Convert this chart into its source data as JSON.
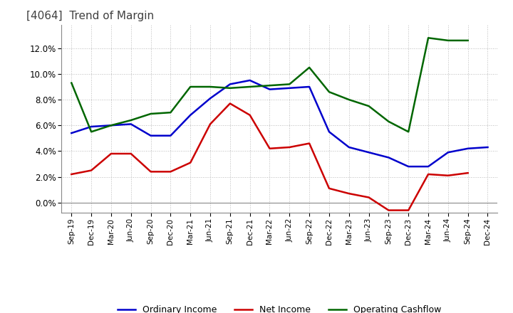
{
  "title": "[4064]  Trend of Margin",
  "x_labels": [
    "Sep-19",
    "Dec-19",
    "Mar-20",
    "Jun-20",
    "Sep-20",
    "Dec-20",
    "Mar-21",
    "Jun-21",
    "Sep-21",
    "Dec-21",
    "Mar-22",
    "Jun-22",
    "Sep-22",
    "Dec-22",
    "Mar-23",
    "Jun-23",
    "Sep-23",
    "Dec-23",
    "Mar-24",
    "Jun-24",
    "Sep-24",
    "Dec-24"
  ],
  "ordinary_income": [
    5.4,
    5.9,
    6.0,
    6.1,
    5.2,
    5.2,
    6.8,
    8.1,
    9.2,
    9.5,
    8.8,
    8.9,
    9.0,
    5.5,
    4.3,
    3.9,
    3.5,
    2.8,
    2.8,
    3.9,
    4.2,
    4.3
  ],
  "net_income": [
    2.2,
    2.5,
    3.8,
    3.8,
    2.4,
    2.4,
    3.1,
    6.1,
    7.7,
    6.8,
    4.2,
    4.3,
    4.6,
    1.1,
    0.7,
    0.4,
    -0.6,
    -0.6,
    2.2,
    2.1,
    2.3,
    null
  ],
  "operating_cashflow": [
    9.3,
    5.5,
    6.0,
    6.4,
    6.9,
    7.0,
    9.0,
    9.0,
    8.9,
    9.0,
    9.1,
    9.2,
    10.5,
    8.6,
    8.0,
    7.5,
    6.3,
    5.5,
    12.8,
    12.6,
    12.6,
    null
  ],
  "ylim": [
    -0.8,
    13.8
  ],
  "yticks": [
    0.0,
    2.0,
    4.0,
    6.0,
    8.0,
    10.0,
    12.0
  ],
  "colors": {
    "ordinary_income": "#0000cc",
    "net_income": "#cc0000",
    "operating_cashflow": "#006600"
  },
  "title_color": "#404040",
  "background_color": "#ffffff",
  "grid_color": "#bbbbbb",
  "line_width": 1.8
}
